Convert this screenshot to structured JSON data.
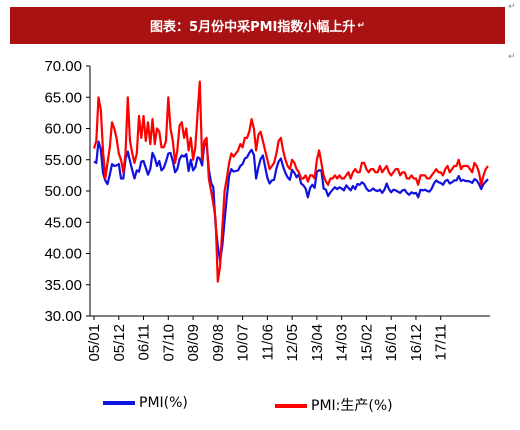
{
  "header": {
    "title": "图表：5月份中采PMI指数小幅上升",
    "para_mark": "↵"
  },
  "chart_data": {
    "type": "line",
    "title": "",
    "xlabel": "",
    "ylabel": "",
    "ylim": [
      30,
      70
    ],
    "yticks": [
      "70.00",
      "65.00",
      "60.00",
      "55.00",
      "50.00",
      "45.00",
      "40.00",
      "35.00",
      "30.00"
    ],
    "xticks": [
      "05/01",
      "05/12",
      "06/11",
      "07/10",
      "08/09",
      "09/08",
      "10/07",
      "11/06",
      "12/05",
      "13/04",
      "14/03",
      "15/02",
      "16/01",
      "16/12",
      "17/11"
    ],
    "legend_position": "bottom",
    "series": [
      {
        "name": "PMI(%)",
        "color": "#1010e0",
        "values": [
          54.7,
          54.5,
          57.9,
          56.7,
          52.9,
          51.7,
          51.1,
          52.6,
          54.3,
          54.0,
          54.1,
          54.3,
          52.0,
          52.0,
          55.1,
          56.3,
          54.8,
          53.3,
          52.0,
          53.3,
          53.1,
          54.7,
          54.8,
          53.7,
          52.6,
          53.5,
          56.1,
          55.3,
          54.0,
          54.8,
          53.3,
          53.7,
          54.7,
          56.0,
          56.1,
          54.8,
          53.0,
          53.5,
          55.1,
          55.7,
          55.5,
          55.9,
          53.2,
          55.0,
          53.3,
          53.8,
          55.4,
          55.2,
          54.1,
          57.4,
          57.7,
          53.5,
          51.3,
          50.6,
          44.6,
          41.2,
          38.8,
          41.2,
          45.3,
          49.0,
          52.4,
          53.5,
          53.1,
          53.2,
          53.3,
          54.0,
          54.3,
          55.2,
          55.4,
          56.1,
          56.6,
          55.8,
          52.0,
          53.8,
          55.1,
          55.7,
          53.9,
          52.1,
          51.2,
          51.7,
          51.8,
          53.6,
          54.7,
          55.2,
          53.9,
          52.9,
          52.2,
          51.8,
          53.4,
          52.9,
          52.2,
          52.7,
          51.2,
          50.9,
          50.4,
          49.0,
          50.5,
          51.0,
          50.5,
          53.1,
          53.3,
          53.3,
          50.4,
          50.2,
          49.2,
          49.8,
          50.2,
          50.6,
          50.3,
          50.6,
          50.4,
          50.1,
          50.9,
          50.5,
          50.1,
          50.8,
          50.3,
          51.1,
          51.0,
          51.4,
          51.1,
          50.4,
          50.0,
          50.1,
          50.4,
          50.1,
          50.0,
          50.2,
          49.7,
          50.2,
          51.2,
          50.3,
          49.8,
          50.2,
          50.1,
          49.9,
          49.7,
          50.1,
          50.2,
          49.7,
          49.4,
          49.8,
          49.6,
          49.7,
          49.0,
          50.2,
          50.1,
          50.2,
          50.0,
          49.9,
          50.4,
          51.2,
          51.7,
          51.4,
          51.3,
          51.0,
          51.6,
          51.8,
          51.2,
          51.4,
          51.7,
          51.7,
          52.4,
          51.6,
          51.8,
          51.6,
          51.6,
          51.5,
          51.3,
          51.9,
          51.7,
          51.1,
          50.3,
          51.1,
          51.5,
          51.9
        ]
      },
      {
        "name": "PMI:生产(%)",
        "color": "#ff0000",
        "values": [
          56.8,
          58.0,
          65.0,
          63.0,
          56.5,
          52.0,
          54.5,
          57.0,
          61.0,
          60.0,
          58.5,
          56.0,
          55.0,
          53.0,
          56.0,
          65.0,
          58.0,
          56.0,
          54.5,
          56.0,
          62.0,
          58.5,
          62.0,
          58.0,
          61.0,
          57.5,
          61.5,
          57.5,
          60.0,
          59.5,
          57.0,
          57.0,
          58.0,
          65.0,
          60.0,
          58.0,
          54.5,
          56.5,
          60.5,
          61.0,
          58.5,
          60.0,
          56.5,
          58.5,
          55.0,
          57.0,
          62.5,
          67.5,
          55.0,
          58.0,
          58.5,
          52.0,
          50.0,
          48.0,
          45.5,
          35.5,
          38.0,
          44.0,
          50.0,
          52.0,
          54.5,
          56.0,
          55.5,
          56.0,
          56.5,
          57.5,
          57.0,
          58.5,
          58.5,
          59.5,
          61.5,
          60.0,
          56.5,
          59.0,
          59.5,
          58.0,
          56.5,
          55.0,
          53.5,
          54.0,
          54.5,
          56.0,
          58.0,
          58.5,
          56.5,
          55.0,
          54.0,
          53.5,
          55.0,
          54.5,
          53.5,
          53.0,
          52.0,
          52.0,
          52.5,
          51.5,
          52.5,
          52.5,
          52.0,
          55.0,
          56.5,
          54.5,
          52.5,
          51.5,
          51.0,
          52.0,
          52.0,
          52.5,
          52.0,
          52.5,
          52.0,
          52.0,
          52.5,
          53.0,
          52.0,
          53.0,
          53.5,
          53.0,
          53.0,
          54.5,
          54.5,
          53.5,
          53.0,
          53.5,
          53.5,
          53.0,
          53.0,
          54.0,
          53.0,
          53.5,
          54.0,
          53.0,
          52.5,
          53.0,
          53.5,
          53.5,
          52.5,
          53.0,
          53.0,
          52.0,
          52.0,
          52.5,
          52.0,
          52.0,
          51.0,
          52.5,
          52.5,
          52.5,
          52.0,
          52.0,
          52.5,
          53.0,
          53.5,
          53.0,
          53.0,
          52.5,
          53.5,
          54.0,
          53.0,
          53.5,
          54.0,
          54.0,
          55.0,
          53.5,
          54.0,
          54.0,
          54.0,
          53.5,
          53.0,
          54.5,
          54.0,
          53.0,
          51.0,
          52.5,
          53.5,
          54.0
        ]
      }
    ]
  }
}
